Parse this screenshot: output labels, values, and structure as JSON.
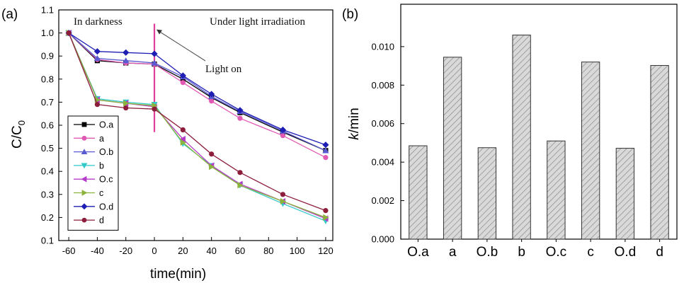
{
  "chart_data": [
    {
      "panel_label": "(a)",
      "type": "line",
      "xlabel": "time(min)",
      "ylabel_main": "C/C",
      "ylabel_sub": "0",
      "x": [
        -60,
        -40,
        -20,
        0,
        20,
        40,
        60,
        90,
        120
      ],
      "xticks": [
        -60,
        -40,
        -20,
        0,
        20,
        40,
        60,
        80,
        100,
        120
      ],
      "yticks": [
        "0.1",
        "0.2",
        "0.3",
        "0.4",
        "0.5",
        "0.6",
        "0.7",
        "0.8",
        "0.9",
        "1.0",
        "1.1"
      ],
      "xlim": [
        -67,
        125
      ],
      "ylim": [
        0.1,
        1.1
      ],
      "annotations": {
        "dark": "In darkness",
        "light": "Under light irradiation",
        "light_on": "Light on"
      },
      "light_on_x": 0,
      "legend_position": "lower-left",
      "series": [
        {
          "name": "O.a",
          "color": "#000000",
          "marker": "square",
          "values": [
            1.0,
            0.88,
            0.87,
            0.865,
            0.8,
            0.72,
            0.655,
            0.57,
            0.49
          ]
        },
        {
          "name": "a",
          "color": "#e05ab4",
          "marker": "circle",
          "values": [
            1.0,
            0.885,
            0.87,
            0.865,
            0.785,
            0.705,
            0.63,
            0.555,
            0.46
          ]
        },
        {
          "name": "O.b",
          "color": "#5a5ad2",
          "marker": "triangle-up",
          "values": [
            1.0,
            0.89,
            0.88,
            0.87,
            0.81,
            0.725,
            0.66,
            0.575,
            0.49
          ]
        },
        {
          "name": "b",
          "color": "#32c8c8",
          "marker": "triangle-down",
          "values": [
            1.0,
            0.715,
            0.7,
            0.69,
            0.52,
            0.425,
            0.34,
            0.26,
            0.185
          ]
        },
        {
          "name": "O.c",
          "color": "#b43cc8",
          "marker": "triangle-left",
          "values": [
            1.0,
            0.71,
            0.695,
            0.68,
            0.54,
            0.425,
            0.345,
            0.27,
            0.195
          ]
        },
        {
          "name": "c",
          "color": "#8cb43c",
          "marker": "triangle-right",
          "values": [
            1.0,
            0.71,
            0.695,
            0.685,
            0.525,
            0.42,
            0.34,
            0.27,
            0.2
          ]
        },
        {
          "name": "O.d",
          "color": "#1e1eb4",
          "marker": "diamond",
          "values": [
            1.0,
            0.92,
            0.915,
            0.91,
            0.815,
            0.735,
            0.665,
            0.58,
            0.515
          ]
        },
        {
          "name": "d",
          "color": "#8c1e3c",
          "marker": "circle",
          "values": [
            1.0,
            0.69,
            0.675,
            0.67,
            0.58,
            0.475,
            0.395,
            0.3,
            0.23
          ]
        }
      ]
    },
    {
      "panel_label": "(b)",
      "type": "bar",
      "ylabel_k": "k",
      "ylabel_rest": "/min",
      "categories": [
        "O.a",
        "a",
        "O.b",
        "b",
        "O.c",
        "c",
        "O.d",
        "d"
      ],
      "values": [
        0.00485,
        0.00945,
        0.00475,
        0.0106,
        0.0051,
        0.0092,
        0.00472,
        0.00902
      ],
      "yticks": [
        "0.000",
        "0.002",
        "0.004",
        "0.006",
        "0.008",
        "0.010"
      ],
      "ylim": [
        0,
        0.0122
      ],
      "bar_fill": "#d6d6d6",
      "bar_hatch": "#8a8a8a"
    }
  ]
}
